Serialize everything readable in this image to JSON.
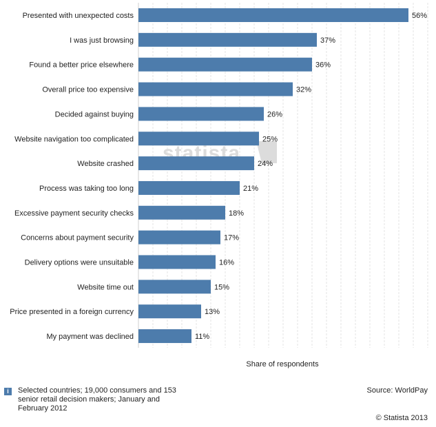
{
  "chart_data": {
    "type": "bar",
    "orientation": "horizontal",
    "categories": [
      "Presented with unexpected costs",
      "I was just browsing",
      "Found a better price elsewhere",
      "Overall price too expensive",
      "Decided against buying",
      "Website navigation too complicated",
      "Website crashed",
      "Process was taking too long",
      "Excessive payment security checks",
      "Concerns about payment security",
      "Delivery options were unsuitable",
      "Website time out",
      "Price presented in a foreign currency",
      "My payment was declined"
    ],
    "values": [
      56,
      37,
      36,
      32,
      26,
      25,
      24,
      21,
      18,
      17,
      16,
      15,
      13,
      11
    ],
    "value_labels": [
      "56%",
      "37%",
      "36%",
      "32%",
      "26%",
      "25%",
      "24%",
      "21%",
      "18%",
      "17%",
      "16%",
      "15%",
      "13%",
      "11%"
    ],
    "xlabel": "Share of respondents",
    "xlim": [
      0,
      60
    ],
    "grid": true,
    "bar_color": "#4d7cac",
    "watermark": "statista"
  },
  "footer": {
    "info_icon": "i",
    "note": "Selected countries; 19,000 consumers and 153 senior retail decision makers; January and February 2012",
    "source": "Source: WorldPay",
    "copyright": "© Statista 2013"
  }
}
